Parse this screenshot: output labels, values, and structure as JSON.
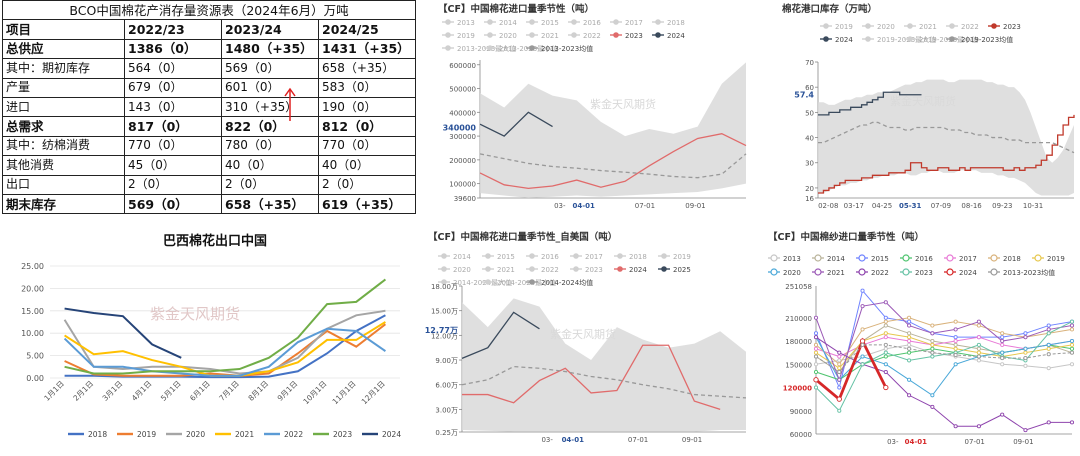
{
  "table": {
    "title": "BCO中国棉花产消存量资源表（2024年6月）万吨",
    "header": [
      "项目",
      "2022/23",
      "2023/24",
      "2024/25"
    ],
    "rows": [
      {
        "cells": [
          "总供应",
          "1386（0）",
          "1480（+35）",
          "1431（+35）"
        ],
        "bold": true
      },
      {
        "cells": [
          "其中：期初库存",
          "564（0）",
          "569（0）",
          "658（+35）"
        ],
        "bold": false
      },
      {
        "cells": [
          "产量",
          "679（0）",
          "601（0）",
          "583（0）"
        ],
        "bold": false
      },
      {
        "cells": [
          "进口",
          "143（0）",
          "310（+35）",
          "190（0）"
        ],
        "bold": false
      },
      {
        "cells": [
          "总需求",
          "817（0）",
          "822（0）",
          "812（0）"
        ],
        "bold": true
      },
      {
        "cells": [
          "其中：纺棉消费",
          "770（0）",
          "780（0）",
          "770（0）"
        ],
        "bold": false
      },
      {
        "cells": [
          "其他消费",
          "45（0）",
          "40（0）",
          "40（0）"
        ],
        "bold": false
      },
      {
        "cells": [
          "出口",
          "2（0）",
          "2（0）",
          "2（0）"
        ],
        "bold": false
      },
      {
        "cells": [
          "期末库存",
          "569（0）",
          "658（+35）",
          "619（+35）"
        ],
        "bold": true
      }
    ]
  },
  "watermark": "紫金天风期货",
  "chart_data": [
    {
      "id": "import",
      "type": "line",
      "title": "【CF】中国棉花进口量季节性（吨）",
      "legend": [
        "2013",
        "2014",
        "2015",
        "2016",
        "2017",
        "2018",
        "2019",
        "2020",
        "2021",
        "2022",
        "2023",
        "2024",
        "2013-2023最大值",
        "2013-2023最小值",
        "2013-2023均值"
      ],
      "x_ticks": [
        "03-",
        "04-01",
        "07-01",
        "09-01"
      ],
      "y_ticks": [
        "600000",
        "500000",
        "400000",
        "300000",
        "200000",
        "100000",
        "39600"
      ],
      "ylim": [
        39600,
        620000
      ],
      "highlight": "340000",
      "months": [
        1,
        2,
        3,
        4,
        5,
        6,
        7,
        8,
        9,
        10,
        11,
        12
      ],
      "band_max": [
        480000,
        420000,
        520000,
        470000,
        450000,
        360000,
        300000,
        330000,
        310000,
        340000,
        520000,
        610000
      ],
      "band_min": [
        60000,
        50000,
        40000,
        45000,
        50000,
        45000,
        50000,
        55000,
        60000,
        65000,
        80000,
        100000
      ],
      "series": [
        {
          "name": "2023",
          "color": "#e06b6b",
          "values": [
            145000,
            95000,
            80000,
            90000,
            115000,
            85000,
            110000,
            175000,
            235000,
            290000,
            310000,
            260000
          ]
        },
        {
          "name": "2024",
          "color": "#3a4a5c",
          "values": [
            350000,
            300000,
            400000,
            340000,
            null,
            null,
            null,
            null,
            null,
            null,
            null,
            null
          ]
        },
        {
          "name": "2013-2023均值",
          "color": "#999999",
          "dashed": true,
          "values": [
            225000,
            205000,
            185000,
            172000,
            165000,
            155000,
            148000,
            140000,
            130000,
            125000,
            140000,
            225000
          ]
        }
      ]
    },
    {
      "id": "port",
      "type": "line",
      "title": "棉花港口库存（万吨）",
      "legend": [
        "2019",
        "2020",
        "2021",
        "2022",
        "2023",
        "2024",
        "2019-2023最大值",
        "2019-2023最小值",
        "2019-2023均值"
      ],
      "x_ticks": [
        "02-08",
        "03-17",
        "04-25",
        "05-31",
        "07-09",
        "08-16",
        "09-23",
        "10-31"
      ],
      "y_ticks": [
        "70",
        "60",
        "50",
        "40",
        "30",
        "20",
        "16"
      ],
      "ylim": [
        16,
        70
      ],
      "highlight": "57.4",
      "weeks": 48,
      "band_max": [
        54,
        54,
        53,
        53,
        54,
        55,
        55,
        56,
        56,
        57,
        57,
        58,
        58,
        58,
        59,
        60,
        61,
        61,
        62,
        62,
        63,
        63,
        63,
        63,
        62,
        62,
        63,
        63,
        63,
        63,
        63,
        62,
        62,
        61,
        61,
        60,
        60,
        58,
        55,
        50,
        44,
        38,
        32,
        30,
        32,
        35,
        40,
        45
      ],
      "band_min": [
        18,
        18,
        19,
        20,
        21,
        21,
        22,
        22,
        23,
        23,
        24,
        24,
        25,
        25,
        25,
        26,
        26,
        25,
        25,
        26,
        26,
        27,
        27,
        26,
        26,
        26,
        27,
        27,
        27,
        27,
        26,
        26,
        26,
        25,
        25,
        24,
        24,
        23,
        22,
        20,
        18,
        17,
        17,
        17,
        17,
        17,
        17,
        18
      ],
      "series": [
        {
          "name": "2023",
          "color": "#c0392b",
          "step": true,
          "values": [
            18,
            19,
            20,
            21,
            22,
            23,
            23,
            23,
            24,
            24,
            25,
            25,
            25,
            26,
            26,
            26,
            27,
            30,
            30,
            28,
            27,
            27,
            28,
            28,
            27,
            27,
            28,
            27,
            28,
            28,
            28,
            28,
            28,
            28,
            27,
            27,
            28,
            27,
            28,
            28,
            29,
            31,
            33,
            37,
            41,
            45,
            48,
            49
          ]
        },
        {
          "name": "2024",
          "color": "#3a4a5c",
          "step": true,
          "values": [
            49,
            49,
            50,
            50,
            51,
            51,
            52,
            52,
            53,
            54,
            55,
            56,
            58,
            58,
            58,
            57,
            57,
            57,
            57,
            57,
            null,
            null,
            null,
            null,
            null,
            null,
            null,
            null,
            null,
            null,
            null,
            null,
            null,
            null,
            null,
            null,
            null,
            null,
            null,
            null,
            null,
            null,
            null,
            null,
            null,
            null,
            null,
            null
          ]
        },
        {
          "name": "2019-2023均值",
          "color": "#999999",
          "dashed": true,
          "values": [
            38,
            38,
            39,
            40,
            41,
            42,
            43,
            44,
            45,
            45,
            46,
            46,
            45,
            44,
            44,
            44,
            43,
            43,
            44,
            44,
            44,
            44,
            44,
            44,
            43,
            43,
            43,
            42,
            42,
            41,
            41,
            41,
            40,
            40,
            40,
            39,
            39,
            39,
            38,
            38,
            38,
            38,
            38,
            38,
            37,
            36,
            35,
            34
          ]
        }
      ]
    },
    {
      "id": "brazil",
      "type": "line",
      "title": "巴西棉花出口中国",
      "categories": [
        "1月1日",
        "2月1日",
        "3月1日",
        "4月1日",
        "5月1日",
        "6月1日",
        "7月1日",
        "8月1日",
        "9月1日",
        "10月1日",
        "11月1日",
        "12月1日"
      ],
      "y_ticks": [
        "25.00",
        "20.00",
        "15.00",
        "10.00",
        "5.00",
        "0.00"
      ],
      "ylim": [
        0,
        25
      ],
      "series": [
        {
          "name": "2018",
          "color": "#4472c4",
          "values": [
            0.5,
            0.5,
            0.3,
            0.3,
            0.3,
            0.2,
            0.2,
            0.3,
            1.5,
            5.5,
            10.5,
            14.0
          ]
        },
        {
          "name": "2019",
          "color": "#ed7d31",
          "values": [
            3.8,
            0.8,
            0.5,
            0.5,
            0.5,
            1.0,
            0.5,
            1.0,
            5.5,
            10.5,
            7.0,
            12.0
          ]
        },
        {
          "name": "2020",
          "color": "#a5a5a5",
          "values": [
            13.0,
            2.5,
            2.0,
            2.5,
            2.5,
            2.0,
            1.0,
            1.5,
            4.5,
            11.0,
            14.0,
            15.0
          ]
        },
        {
          "name": "2021",
          "color": "#ffc000",
          "values": [
            9.5,
            5.3,
            6.0,
            4.0,
            2.5,
            0.5,
            0.5,
            1.5,
            3.5,
            8.5,
            8.5,
            12.5
          ]
        },
        {
          "name": "2022",
          "color": "#5b9bd5",
          "values": [
            8.8,
            2.5,
            2.5,
            1.5,
            1.0,
            0.5,
            0.5,
            2.5,
            8.0,
            11.0,
            10.5,
            6.0
          ]
        },
        {
          "name": "2023",
          "color": "#70ad47",
          "values": [
            2.5,
            1.0,
            1.0,
            1.5,
            1.5,
            1.5,
            2.0,
            4.5,
            9.0,
            16.5,
            17.0,
            22.0
          ]
        },
        {
          "name": "2024",
          "color": "#264478",
          "values": [
            15.5,
            14.5,
            13.8,
            7.5,
            4.5,
            null,
            null,
            null,
            null,
            null,
            null,
            null
          ]
        }
      ]
    },
    {
      "id": "us",
      "type": "line",
      "title": "【CF】中国棉花进口量季节性_自美国（吨）",
      "legend": [
        "2014",
        "2015",
        "2016",
        "2017",
        "2018",
        "2019",
        "2020",
        "2021",
        "2022",
        "2023",
        "2024",
        "2025",
        "2014-2024最大值",
        "2014-2024最小值",
        "2014-2024均值"
      ],
      "x_ticks": [
        "03-",
        "04-01",
        "07-01",
        "09-01"
      ],
      "y_ticks": [
        "18.00万",
        "15.00万",
        "12.00万",
        "9.00万",
        "6.00万",
        "3.00万",
        "0.25万"
      ],
      "ylim": [
        0.25,
        18
      ],
      "highlight": "12.77万",
      "months": [
        1,
        2,
        3,
        4,
        5,
        6,
        7,
        8,
        9,
        10,
        11,
        12
      ],
      "band_max": [
        16.0,
        13.0,
        16.5,
        15.5,
        11.0,
        9.0,
        13.0,
        11.5,
        10.5,
        11.0,
        12.5,
        10.0
      ],
      "band_min": [
        0.5,
        0.4,
        0.3,
        0.3,
        0.3,
        0.3,
        0.3,
        0.3,
        0.3,
        0.3,
        0.5,
        0.5
      ],
      "series": [
        {
          "name": "2024",
          "color": "#e06b6b",
          "values": [
            4.8,
            4.8,
            3.8,
            6.5,
            8.0,
            5.0,
            5.3,
            10.8,
            10.8,
            4.0,
            3.0,
            null
          ]
        },
        {
          "name": "2025",
          "color": "#3a4a5c",
          "values": [
            9.2,
            10.5,
            14.8,
            12.8,
            null,
            null,
            null,
            null,
            null,
            null,
            null,
            null
          ]
        },
        {
          "name": "2014-2024均值",
          "color": "#999999",
          "dashed": true,
          "values": [
            6.0,
            6.6,
            8.2,
            8.0,
            7.6,
            7.0,
            6.6,
            6.0,
            5.5,
            4.8,
            4.6,
            4.4
          ]
        }
      ]
    },
    {
      "id": "yarn",
      "type": "line",
      "title": "【CF】中国棉纱进口量季节性（吨）",
      "legend": [
        "2013",
        "2014",
        "2015",
        "2016",
        "2017",
        "2018",
        "2019",
        "2020",
        "2021",
        "2022",
        "2023",
        "2024",
        "2013-2023均值"
      ],
      "x_ticks": [
        "03-",
        "04-01",
        "07-01",
        "09-01"
      ],
      "y_ticks": [
        "251058",
        "210000",
        "180000",
        "150000",
        "120000",
        "90000",
        "60000"
      ],
      "ylim": [
        60000,
        251058
      ],
      "highlight": "120000",
      "months": [
        1,
        2,
        3,
        4,
        5,
        6,
        7,
        8,
        9,
        10,
        11,
        12
      ],
      "series": [
        {
          "name": "2013",
          "color": "#c6c6c6",
          "values": [
            150000,
            155000,
            160000,
            170000,
            175000,
            165000,
            160000,
            155000,
            150000,
            148000,
            145000,
            150000
          ]
        },
        {
          "name": "2014",
          "color": "#b9b39a",
          "values": [
            160000,
            140000,
            180000,
            200000,
            190000,
            180000,
            175000,
            170000,
            165000,
            170000,
            175000,
            165000
          ]
        },
        {
          "name": "2015",
          "color": "#6f83ff",
          "values": [
            190000,
            120000,
            245000,
            210000,
            205000,
            190000,
            185000,
            185000,
            185000,
            190000,
            200000,
            205000
          ]
        },
        {
          "name": "2016",
          "color": "#4fc46f",
          "values": [
            140000,
            130000,
            150000,
            160000,
            165000,
            170000,
            165000,
            160000,
            165000,
            170000,
            175000,
            170000
          ]
        },
        {
          "name": "2017",
          "color": "#e87ad6",
          "values": [
            170000,
            160000,
            175000,
            185000,
            180000,
            175000,
            180000,
            185000,
            175000,
            170000,
            175000,
            180000
          ]
        },
        {
          "name": "2018",
          "color": "#d9b27b",
          "values": [
            175000,
            150000,
            195000,
            205000,
            210000,
            200000,
            205000,
            200000,
            190000,
            185000,
            190000,
            195000
          ]
        },
        {
          "name": "2019",
          "color": "#e6c74d",
          "values": [
            165000,
            145000,
            180000,
            190000,
            185000,
            175000,
            170000,
            165000,
            160000,
            165000,
            170000,
            175000
          ]
        },
        {
          "name": "2020",
          "color": "#4aa8d8",
          "values": [
            185000,
            130000,
            160000,
            150000,
            130000,
            110000,
            150000,
            160000,
            165000,
            170000,
            175000,
            180000
          ]
        },
        {
          "name": "2021",
          "color": "#9b59b6",
          "values": [
            210000,
            130000,
            225000,
            230000,
            200000,
            190000,
            195000,
            205000,
            180000,
            185000,
            195000,
            200000
          ]
        },
        {
          "name": "2022",
          "color": "#8e44ad",
          "values": [
            185000,
            165000,
            150000,
            140000,
            110000,
            95000,
            70000,
            70000,
            85000,
            65000,
            75000,
            75000
          ]
        },
        {
          "name": "2023",
          "color": "#66c2a5",
          "values": [
            120000,
            90000,
            150000,
            165000,
            155000,
            160000,
            165000,
            175000,
            160000,
            155000,
            190000,
            205000
          ]
        },
        {
          "name": "2024",
          "color": "#d62728",
          "bold": true,
          "values": [
            130000,
            105000,
            180000,
            120000,
            null,
            null,
            null,
            null,
            null,
            null,
            null,
            null
          ]
        },
        {
          "name": "2013-2023均值",
          "color": "#999999",
          "dashed": true,
          "values": [
            160000,
            140000,
            175000,
            175000,
            170000,
            165000,
            162000,
            160000,
            158000,
            158000,
            163000,
            165000
          ]
        }
      ]
    }
  ]
}
